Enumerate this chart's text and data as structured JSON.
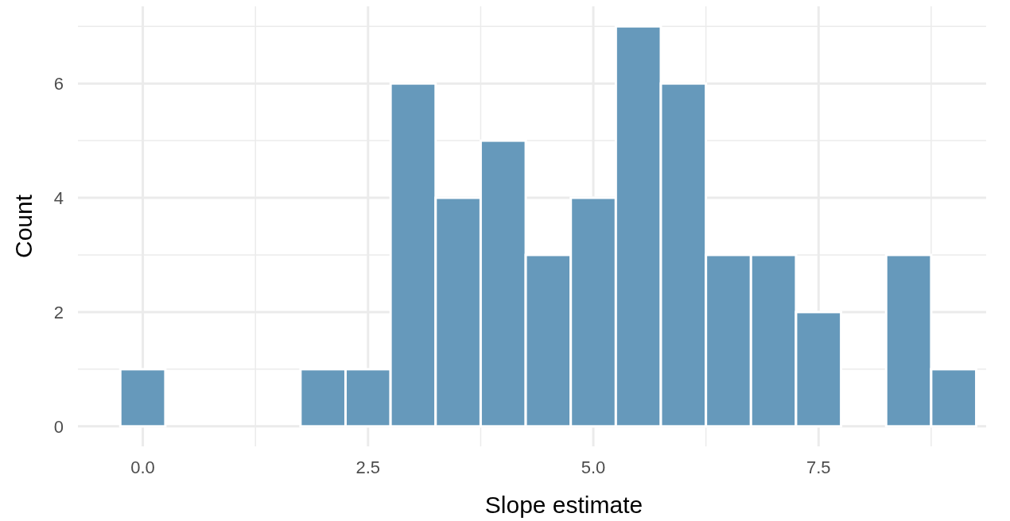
{
  "chart_data": {
    "type": "histogram",
    "xlabel": "Slope estimate",
    "ylabel": "Count",
    "bins": [
      -0.25,
      0.25,
      0.75,
      1.25,
      1.75,
      2.25,
      2.75,
      3.25,
      3.75,
      4.25,
      4.75,
      5.25,
      5.75,
      6.25,
      6.75,
      7.25,
      7.75,
      8.25,
      8.75,
      9.25
    ],
    "values": [
      1,
      0,
      0,
      0,
      1,
      1,
      6,
      4,
      5,
      3,
      4,
      7,
      6,
      3,
      3,
      2,
      0,
      3,
      1
    ],
    "color": "#6699bb",
    "xlim": [
      -0.72,
      9.36
    ],
    "ylim": [
      -0.35,
      7.35
    ],
    "xticks": [
      {
        "value": 0,
        "label": "0.0"
      },
      {
        "value": 1.25,
        "label": null
      },
      {
        "value": 2.5,
        "label": "2.5"
      },
      {
        "value": 3.75,
        "label": null
      },
      {
        "value": 5,
        "label": "5.0"
      },
      {
        "value": 6.25,
        "label": null
      },
      {
        "value": 7.5,
        "label": "7.5"
      },
      {
        "value": 8.75,
        "label": null
      }
    ],
    "yticks": [
      0,
      {
        "value": 1,
        "label": null
      },
      2,
      {
        "value": 3,
        "label": null
      },
      4,
      {
        "value": 5,
        "label": null
      },
      6,
      {
        "value": 7,
        "label": null
      }
    ],
    "grid": true
  }
}
